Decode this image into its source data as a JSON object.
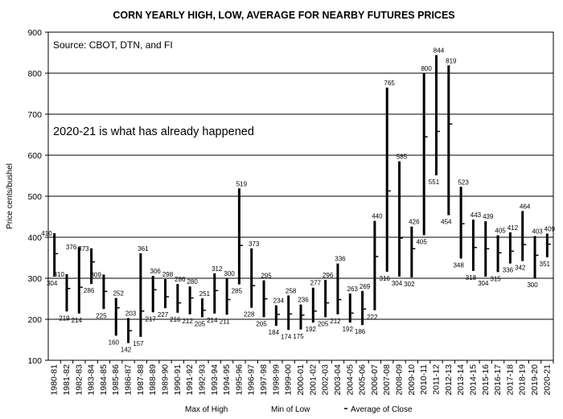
{
  "chart_data": {
    "type": "high-low-close",
    "title": "CORN YEARLY HIGH, LOW, AVERAGE FOR NEARBY FUTURES PRICES",
    "ylabel": "Price cents/bushel",
    "xlabel": "",
    "ylim": [
      100,
      900
    ],
    "yticks": [
      100,
      200,
      300,
      400,
      500,
      600,
      700,
      800,
      900
    ],
    "grid": true,
    "legend_position": "bottom",
    "legend": [
      "Max of High",
      "Min of Low",
      "Average of Close"
    ],
    "annotations": {
      "source": "Source: CBOT, DTN, and FI",
      "note": "2020-21 is what has already happened"
    },
    "categories": [
      "1980-81",
      "1981-82",
      "1982-83",
      "1983-84",
      "1984-85",
      "1985-86",
      "1986-87",
      "1987-88",
      "1988-89",
      "1989-90",
      "1990-91",
      "1991-92",
      "1992-93",
      "1993-94",
      "1994-95",
      "1995-96",
      "1996-97",
      "1997-98",
      "1998-99",
      "1999-00",
      "2000-01",
      "2001-02",
      "2002-03",
      "2003-04",
      "2004-05",
      "2005-06",
      "2006-07",
      "2007-08",
      "2008-09",
      "2009-10",
      "2010-11",
      "2011-12",
      "2012-13",
      "2013-14",
      "2014-15",
      "2015-16",
      "2016-17",
      "2017-18",
      "2018-19",
      "2019-20",
      "2020-21"
    ],
    "series": [
      {
        "name": "Max of High",
        "values": [
          410,
          310,
          376,
          373,
          309,
          252,
          203,
          361,
          306,
          298,
          286,
          280,
          251,
          312,
          300,
          519,
          373,
          295,
          234,
          258,
          236,
          277,
          296,
          336,
          263,
          269,
          440,
          765,
          585,
          426,
          800,
          844,
          819,
          523,
          443,
          439,
          405,
          412,
          464,
          403,
          409
        ]
      },
      {
        "name": "Min of Low",
        "values": [
          304,
          219,
          214,
          286,
          225,
          160,
          142,
          157,
          217,
          227,
          216,
          212,
          205,
          214,
          211,
          285,
          228,
          205,
          184,
          174,
          175,
          192,
          205,
          212,
          192,
          186,
          222,
          316,
          304,
          302,
          405,
          551,
          454,
          348,
          318,
          304,
          315,
          336,
          342,
          300,
          351
        ]
      },
      {
        "name": "Average of Close",
        "values": [
          360,
          275,
          278,
          340,
          268,
          228,
          172,
          220,
          272,
          255,
          240,
          252,
          222,
          270,
          248,
          380,
          282,
          250,
          212,
          213,
          210,
          220,
          240,
          248,
          215,
          225,
          353,
          513,
          398,
          372,
          645,
          658,
          676,
          433,
          375,
          372,
          362,
          366,
          382,
          356,
          383
        ]
      }
    ],
    "high_label_rows": [
      1,
      1,
      1,
      1,
      1,
      0,
      0,
      0,
      0,
      0,
      0,
      0,
      0,
      0,
      0,
      0,
      0,
      0,
      0,
      0,
      0,
      0,
      0,
      0,
      0,
      0,
      0,
      0,
      0,
      0,
      0,
      0,
      0,
      0,
      0,
      0,
      0,
      0,
      0,
      0,
      0
    ],
    "colors": {
      "bars": "#000000",
      "grid": "#000000",
      "background": "#ffffff"
    }
  }
}
